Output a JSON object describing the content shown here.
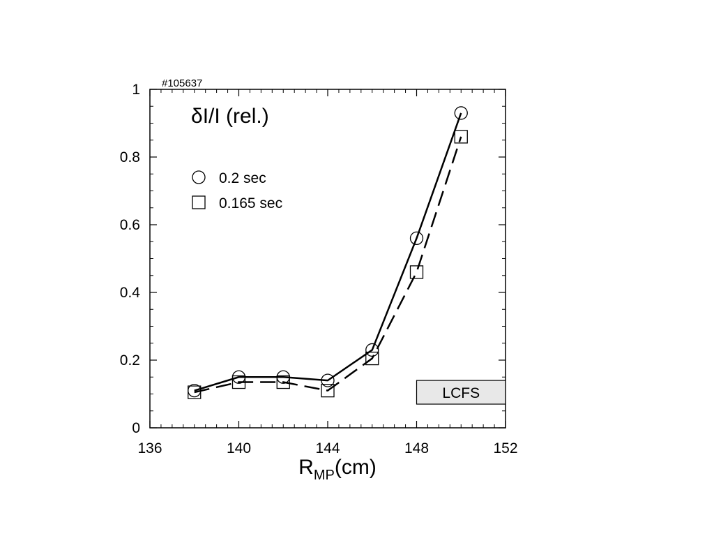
{
  "chart_data": {
    "type": "line",
    "title": "δI/I (rel.)",
    "shot_label": "#105637",
    "xlabel": "R",
    "xlabel_sub": "MP",
    "xlabel_unit": "(cm)",
    "ylabel": "",
    "xlim": [
      136,
      152
    ],
    "ylim": [
      0,
      1
    ],
    "xticks": [
      136,
      140,
      144,
      148,
      152
    ],
    "yticks": [
      0,
      0.2,
      0.4,
      0.6,
      0.8,
      1
    ],
    "ytick_labels": [
      "0",
      "0.2",
      "0.4",
      "0.6",
      "0.8",
      "1"
    ],
    "x_minor_step": 0.5,
    "y_minor_step": 0.05,
    "grid": false,
    "legend_position": "upper-left",
    "series": [
      {
        "name": "0.2 sec",
        "marker": "circle",
        "line": "solid",
        "x": [
          138,
          140,
          142,
          144,
          146,
          148,
          150
        ],
        "y": [
          0.11,
          0.15,
          0.15,
          0.14,
          0.23,
          0.56,
          0.93
        ]
      },
      {
        "name": "0.165 sec",
        "marker": "square",
        "line": "dashed",
        "x": [
          138,
          140,
          142,
          144,
          146,
          148,
          150
        ],
        "y": [
          0.105,
          0.135,
          0.135,
          0.11,
          0.205,
          0.46,
          0.86
        ]
      }
    ],
    "annotation": {
      "text": "LCFS",
      "x_range": [
        148,
        152
      ],
      "y_range": [
        0.07,
        0.14
      ],
      "fill": "#e8e8e8"
    },
    "colors": {
      "line": "#000000",
      "background": "#ffffff"
    }
  }
}
